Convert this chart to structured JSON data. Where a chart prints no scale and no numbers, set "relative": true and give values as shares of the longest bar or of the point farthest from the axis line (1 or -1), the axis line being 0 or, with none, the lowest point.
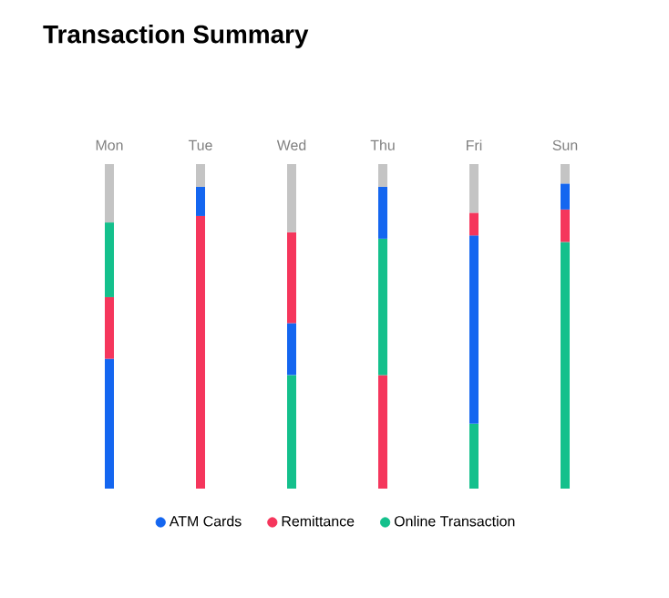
{
  "chart_data": {
    "type": "bar",
    "title": "Transaction Summary",
    "stacked": true,
    "relative": true,
    "legend": "bottom",
    "categories": [
      "Mon",
      "Tue",
      "Wed",
      "Thu",
      "Fri",
      "Sun"
    ],
    "series": [
      {
        "name": "ATM Cards",
        "color": "#1466f0",
        "values": [
          0.4,
          null,
          null,
          null,
          null,
          null
        ]
      },
      {
        "name": "Remittance",
        "color": "#f5365c",
        "values": [
          null,
          0.84,
          null,
          0.35,
          null,
          null
        ]
      },
      {
        "name": "Online Transaction",
        "color": "#14c08c",
        "values": [
          null,
          null,
          0.35,
          null,
          0.2,
          0.76
        ]
      },
      {
        "color": "#1466f0",
        "values": [
          null,
          0.09,
          0.16,
          null,
          0.58,
          null
        ]
      },
      {
        "color": "#f5365c",
        "values": [
          0.19,
          null,
          null,
          null,
          null,
          0.1
        ]
      },
      {
        "color": "#14c08c",
        "values": [
          null,
          null,
          null,
          0.42,
          null,
          null
        ]
      },
      {
        "color": "#1466f0",
        "values": [
          null,
          null,
          null,
          0.16,
          null,
          0.08
        ]
      },
      {
        "color": "#f5365c",
        "values": [
          null,
          null,
          0.28,
          null,
          0.07,
          null
        ]
      },
      {
        "color": "#14c08c",
        "values": [
          0.23,
          null,
          null,
          null,
          null,
          null
        ]
      },
      {
        "color": "#c4c4c4",
        "values": [
          0.18,
          0.07,
          0.21,
          0.07,
          0.15,
          0.06
        ]
      }
    ]
  }
}
